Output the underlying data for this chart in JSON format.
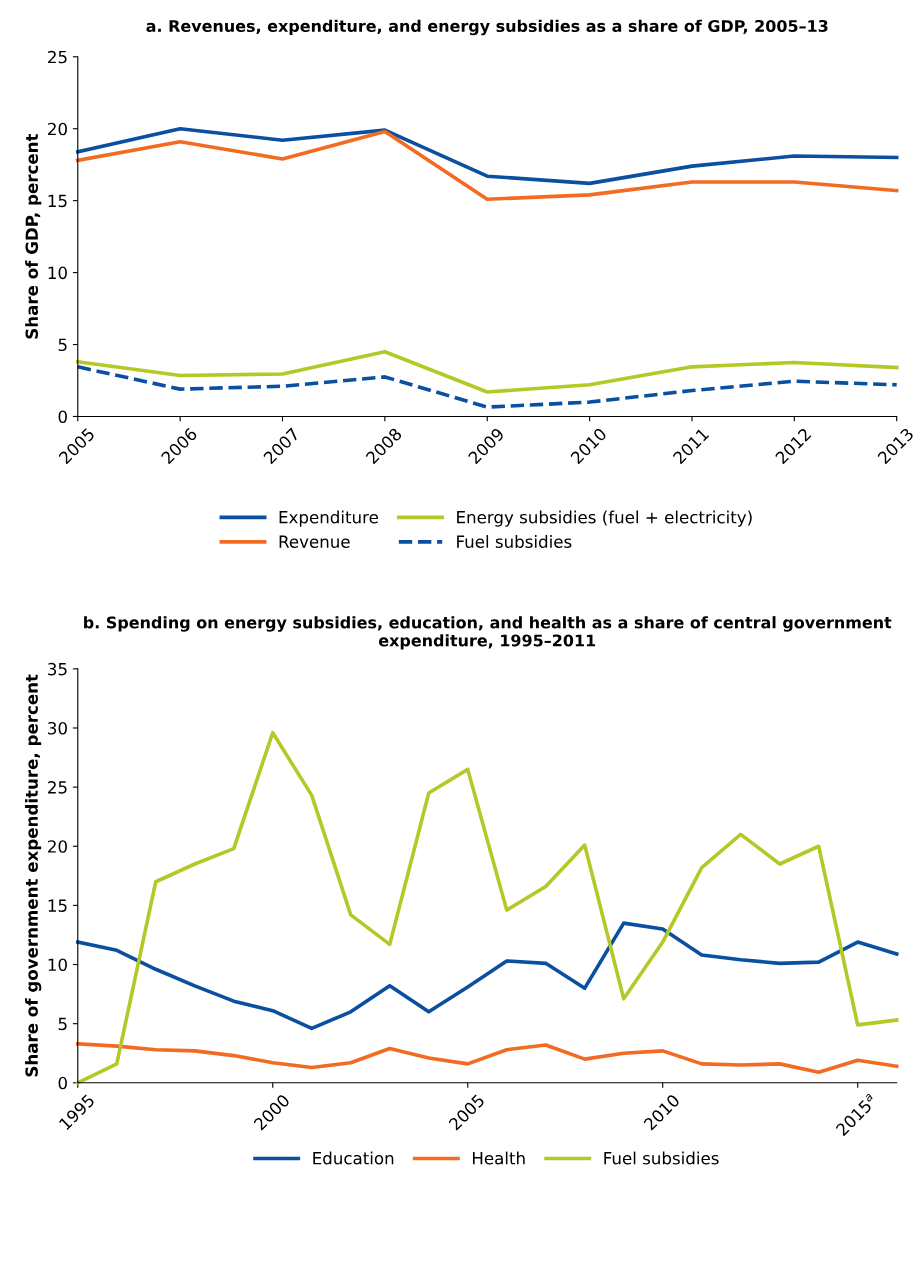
{
  "chart_data": [
    {
      "type": "line",
      "title": "a. Revenues, expenditure, and energy subsidies as a share of GDP, 2005–13",
      "ylabel": "Share of GDP, percent",
      "x": [
        2005,
        2006,
        2007,
        2008,
        2009,
        2010,
        2011,
        2012,
        2013
      ],
      "series": [
        {
          "name": "Expenditure",
          "color": "#0a4fa0",
          "values": [
            18.4,
            20.0,
            19.2,
            19.9,
            16.7,
            16.2,
            17.4,
            18.1,
            18.0
          ]
        },
        {
          "name": "Revenue",
          "color": "#f26b21",
          "values": [
            17.8,
            19.1,
            17.9,
            19.8,
            15.1,
            15.4,
            16.3,
            16.3,
            15.7
          ]
        },
        {
          "name": "Energy subsidies (fuel + electricity)",
          "color": "#b5c827",
          "values": [
            3.8,
            2.85,
            2.95,
            4.5,
            1.7,
            2.2,
            3.45,
            3.75,
            3.4
          ]
        },
        {
          "name": "Fuel subsidies",
          "color": "#0a4fa0",
          "line_style": "dashed",
          "values": [
            3.45,
            1.9,
            2.1,
            2.75,
            0.65,
            1.0,
            1.8,
            2.45,
            2.2
          ]
        }
      ],
      "xlim": [
        2005,
        2013
      ],
      "xticks": [
        2005,
        2006,
        2007,
        2008,
        2009,
        2010,
        2011,
        2012,
        2013
      ],
      "ylim": [
        0,
        25
      ],
      "yticks": [
        0,
        5,
        10,
        15,
        20,
        25
      ],
      "grid": false,
      "legend": "bottom",
      "marker": "none",
      "line_style": "solid"
    },
    {
      "type": "line",
      "title": "b. Spending on energy subsidies, education, and health as a share of central government expenditure, 1995–2011",
      "ylabel": "Share of government expenditure, percent",
      "x": [
        1995,
        1996,
        1997,
        1998,
        1999,
        2000,
        2001,
        2002,
        2003,
        2004,
        2005,
        2006,
        2007,
        2008,
        2009,
        2010,
        2011,
        2012,
        2013,
        2014,
        2015,
        2016
      ],
      "series": [
        {
          "name": "Education",
          "color": "#0a4fa0",
          "values": [
            11.9,
            11.2,
            9.6,
            8.2,
            6.9,
            6.1,
            4.6,
            6.0,
            8.2,
            6.0,
            8.1,
            10.3,
            10.1,
            8.0,
            13.5,
            13.0,
            10.8,
            10.4,
            10.1,
            10.2,
            11.9,
            10.9
          ]
        },
        {
          "name": "Health",
          "color": "#f26b21",
          "values": [
            3.3,
            3.1,
            2.8,
            2.7,
            2.3,
            1.7,
            1.3,
            1.7,
            2.9,
            2.1,
            1.6,
            2.8,
            3.2,
            2.0,
            2.5,
            2.7,
            1.6,
            1.5,
            1.6,
            0.9,
            1.9,
            1.4
          ]
        },
        {
          "name": "Fuel subsidies",
          "color": "#b5c827",
          "values": [
            0,
            1.6,
            17.0,
            18.5,
            19.8,
            29.6,
            24.3,
            14.2,
            11.7,
            24.5,
            26.5,
            14.6,
            16.6,
            20.1,
            7.1,
            11.9,
            18.2,
            21.0,
            18.5,
            20.0,
            4.9,
            5.3
          ]
        }
      ],
      "xlim": [
        1995,
        2016
      ],
      "xticks": [
        1995,
        2000,
        2005,
        2010,
        {
          "value": 2015,
          "label": "2015$^{a}$"
        }
      ],
      "ylim": [
        0,
        35
      ],
      "yticks": [
        0,
        5,
        10,
        15,
        20,
        25,
        30,
        35
      ],
      "grid": false,
      "legend": "bottom",
      "marker": "none",
      "line_style": "solid"
    }
  ]
}
